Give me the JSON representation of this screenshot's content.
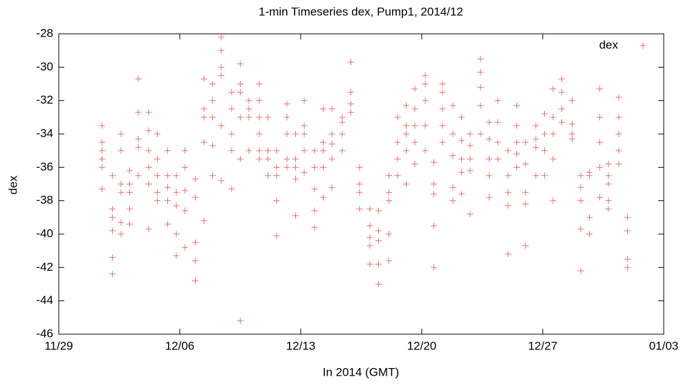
{
  "chart_data": {
    "type": "scatter",
    "title": "1-min Timeseries dex, Pump1, 2014/12",
    "xlabel": "In 2014 (GMT)",
    "ylabel": "dex",
    "legend": "top-right",
    "xlim": [
      0,
      35
    ],
    "xticks": [
      {
        "value": 0,
        "label": "11/29"
      },
      {
        "value": 7,
        "label": "12/06"
      },
      {
        "value": 14,
        "label": "12/13"
      },
      {
        "value": 21,
        "label": "12/20"
      },
      {
        "value": 28,
        "label": "12/27"
      },
      {
        "value": 35,
        "label": "01/03"
      }
    ],
    "ylim": [
      -46,
      -28
    ],
    "yticks": [
      -46,
      -44,
      -42,
      -40,
      -38,
      -36,
      -34,
      -32,
      -30,
      -28
    ],
    "series": [
      {
        "name": "dex",
        "color": "#ec6f6f",
        "x": [
          2.5,
          2.5,
          2.5,
          2.5,
          2.5,
          2.5,
          3.1,
          3.1,
          3.1,
          3.1,
          3.1,
          3.1,
          3.6,
          3.6,
          3.6,
          3.6,
          3.6,
          3.6,
          4.1,
          4.1,
          4.1,
          4.1,
          4.1,
          4.6,
          4.6,
          4.6,
          4.6,
          4.6,
          5.2,
          5.2,
          5.2,
          5.2,
          5.2,
          5.2,
          5.7,
          5.7,
          5.7,
          5.7,
          5.7,
          6.3,
          6.3,
          6.3,
          6.3,
          6.3,
          6.8,
          6.8,
          6.8,
          6.8,
          6.8,
          7.3,
          7.3,
          7.3,
          7.3,
          7.3,
          7.9,
          7.9,
          7.9,
          7.9,
          7.9,
          8.4,
          8.4,
          8.4,
          8.4,
          8.4,
          8.9,
          8.9,
          8.9,
          8.9,
          8.9,
          9.4,
          9.4,
          9.4,
          9.4,
          9.4,
          9.4,
          10.0,
          10.0,
          10.0,
          10.0,
          10.0,
          10.5,
          10.5,
          10.5,
          10.5,
          10.5,
          10.5,
          11.0,
          11.0,
          11.0,
          11.0,
          11.6,
          11.6,
          11.6,
          11.6,
          11.6,
          11.6,
          12.1,
          12.1,
          12.1,
          12.1,
          12.6,
          12.6,
          12.6,
          12.6,
          12.6,
          13.2,
          13.2,
          13.2,
          13.2,
          13.2,
          13.7,
          13.7,
          13.7,
          13.7,
          13.7,
          14.2,
          14.2,
          14.2,
          14.2,
          14.2,
          14.8,
          14.8,
          14.8,
          14.8,
          14.8,
          15.3,
          15.3,
          15.3,
          15.3,
          15.3,
          15.8,
          15.8,
          15.8,
          15.8,
          15.8,
          16.4,
          16.4,
          16.4,
          16.4,
          16.9,
          16.9,
          16.9,
          16.9,
          17.4,
          17.4,
          17.4,
          17.4,
          18.0,
          18.0,
          18.0,
          18.0,
          18.0,
          18.5,
          18.5,
          18.5,
          18.5,
          18.5,
          19.1,
          19.1,
          19.1,
          19.1,
          19.1,
          19.6,
          19.6,
          19.6,
          19.6,
          20.1,
          20.1,
          20.1,
          20.1,
          20.1,
          20.6,
          20.6,
          20.6,
          20.6,
          20.6,
          21.2,
          21.2,
          21.2,
          21.2,
          21.2,
          21.7,
          21.7,
          21.7,
          21.7,
          21.7,
          22.2,
          22.2,
          22.2,
          22.2,
          22.2,
          22.8,
          22.8,
          22.8,
          22.8,
          22.8,
          23.3,
          23.3,
          23.3,
          23.3,
          23.3,
          23.8,
          23.8,
          23.8,
          23.8,
          23.8,
          24.4,
          24.4,
          24.4,
          24.4,
          24.4,
          24.9,
          24.9,
          24.9,
          24.9,
          24.9,
          25.4,
          25.4,
          25.4,
          25.4,
          26.0,
          26.0,
          26.0,
          26.0,
          26.0,
          26.5,
          26.5,
          26.5,
          26.5,
          26.5,
          27.0,
          27.0,
          27.0,
          27.0,
          27.0,
          27.6,
          27.6,
          27.6,
          27.6,
          28.1,
          28.1,
          28.1,
          28.1,
          28.6,
          28.6,
          28.6,
          28.6,
          28.6,
          29.1,
          29.1,
          29.1,
          29.1,
          29.7,
          29.7,
          29.7,
          29.7,
          30.2,
          30.2,
          30.2,
          30.2,
          30.2,
          30.7,
          30.7,
          30.7,
          30.7,
          31.3,
          31.3,
          31.3,
          31.3,
          31.3,
          31.8,
          31.8,
          31.8,
          31.8,
          31.8,
          32.4,
          32.4,
          32.4,
          32.4,
          32.4,
          32.9,
          32.9,
          32.9,
          32.9
        ],
        "values": [
          -33.5,
          -34.5,
          -35,
          -35.5,
          -36,
          -37.3,
          -36.5,
          -38.5,
          -39,
          -39.8,
          -41.4,
          -42.4,
          -34,
          -35,
          -37,
          -37.5,
          -39.3,
          -40,
          -36.2,
          -37,
          -37.5,
          -38.5,
          -39.4,
          -30.7,
          -32.7,
          -34.3,
          -34.8,
          -36.5,
          -32.7,
          -33.8,
          -35,
          -36,
          -37,
          -39.7,
          -34,
          -35.5,
          -36.5,
          -37.5,
          -38,
          -35,
          -36.5,
          -37.2,
          -38,
          -39.4,
          -36.5,
          -37.5,
          -38.3,
          -40,
          -41.3,
          -35,
          -36,
          -37.4,
          -38.6,
          -40.8,
          -36.7,
          -37.8,
          -40.5,
          -41.6,
          -42.8,
          -30.7,
          -32.5,
          -33,
          -34.5,
          -39.2,
          -31,
          -32,
          -33,
          -34.7,
          -36.5,
          -28.2,
          -29,
          -30,
          -30.5,
          -33.5,
          -36.8,
          -31.5,
          -32.5,
          -34,
          -35,
          -37.3,
          -29.8,
          -31,
          -31.5,
          -33,
          -35.5,
          -45.2,
          -32,
          -32.5,
          -33,
          -35,
          -31,
          -32,
          -33,
          -34,
          -35,
          -35.5,
          -33,
          -35,
          -35.5,
          -36.5,
          -35,
          -36,
          -36.5,
          -38,
          -40.1,
          -32.2,
          -33,
          -34,
          -35.5,
          -36,
          -34,
          -35.5,
          -36,
          -36.7,
          -38.9,
          -32,
          -33.5,
          -34,
          -35,
          -36.3,
          -35,
          -36,
          -37.3,
          -38.6,
          -39.6,
          -32.5,
          -34.5,
          -35,
          -36,
          -37.8,
          -32.5,
          -34,
          -34.6,
          -35.5,
          -37.2,
          -33,
          -33.3,
          -34,
          -35,
          -29.7,
          -31.5,
          -32.2,
          -32.7,
          -36,
          -37,
          -37.5,
          -38.5,
          -38.5,
          -39.5,
          -40.2,
          -40.7,
          -41.8,
          -38.6,
          -39.8,
          -40.4,
          -41.8,
          -43,
          -36.5,
          -37.5,
          -38,
          -40,
          -41.6,
          -33,
          -34.5,
          -35.5,
          -36.5,
          -32.3,
          -33.5,
          -34,
          -35,
          -37,
          -31.3,
          -32.5,
          -33.5,
          -34.5,
          -35.8,
          -30.5,
          -31,
          -32,
          -33.5,
          -35,
          -35.7,
          -37,
          -37.6,
          -39.5,
          -42,
          -31,
          -31.5,
          -32.5,
          -33.5,
          -34.5,
          -32.3,
          -34,
          -35.3,
          -37.2,
          -38,
          -33,
          -34.4,
          -35.5,
          -36.3,
          -37.6,
          -34,
          -34.7,
          -35.5,
          -36.2,
          -38.8,
          -29.5,
          -30.3,
          -31.2,
          -32.3,
          -34,
          -33.3,
          -34.3,
          -35.5,
          -36.5,
          -37.8,
          -32,
          -33.3,
          -34.5,
          -35.5,
          -35,
          -36.5,
          -37.5,
          -38.3,
          -41.2,
          -32.3,
          -33.5,
          -34.5,
          -35.2,
          -36,
          -34.5,
          -35.8,
          -37.5,
          -38.2,
          -40.7,
          -33.5,
          -34.3,
          -34.8,
          -36.5,
          -32.8,
          -34,
          -35,
          -36.5,
          -31.3,
          -33,
          -34,
          -35.5,
          -38,
          -30.7,
          -31.5,
          -32.5,
          -33.3,
          -32,
          -33.4,
          -34,
          -34.3,
          -36.5,
          -37.2,
          -38,
          -39.7,
          -42.2,
          -36.3,
          -36.5,
          -39,
          -40,
          -31.3,
          -33,
          -34.5,
          -36,
          -37.8,
          -35.8,
          -36.5,
          -37,
          -38,
          -38.5,
          -31.8,
          -33,
          -34,
          -35,
          -35.8,
          -39,
          -39.8,
          -41.5,
          -42
        ]
      }
    ]
  }
}
